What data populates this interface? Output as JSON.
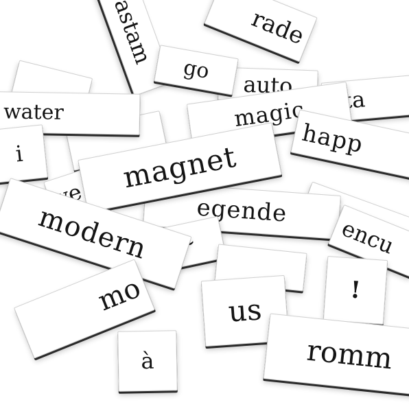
{
  "tiles": {
    "pastam": "pastam",
    "rade": "rade",
    "go": "go",
    "auto": "auto",
    "eta": "eta",
    "water": "water",
    "magic": "magic",
    "i": "i",
    "happ": "happ",
    "magnet": "magnet",
    "ve": "ve",
    "egende": "egende",
    "modern": "modern",
    "encu": "encu",
    "tilde": "~",
    "exclamation": "!",
    "mo": "mo",
    "us": "us",
    "a_grave": "à",
    "romm": "romm"
  },
  "colors": {
    "tile": "#ffffff",
    "edge": "#2a2a2a",
    "text": "#141414",
    "background": "#ffffff"
  }
}
